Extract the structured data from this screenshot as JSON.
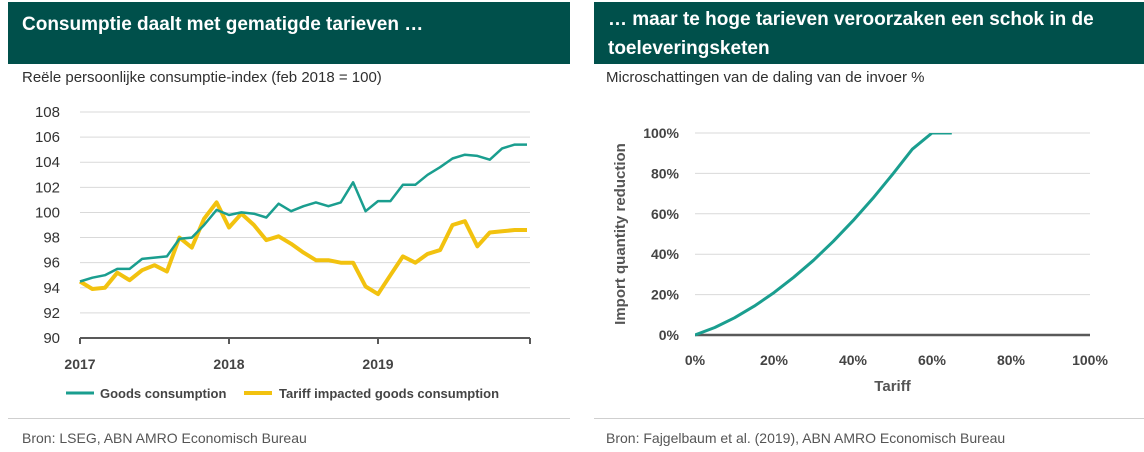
{
  "left_panel": {
    "title": "Consumptie daalt met gematigde tarieven …",
    "subtitle": "Reële persoonlijke consumptie-index (feb 2018 = 100)",
    "source": "Bron: LSEG, ABN AMRO  Economisch Bureau"
  },
  "right_panel": {
    "title": "… maar te hoge tarieven veroorzaken een schok in de toeleveringsketen",
    "subtitle": "Microschattingen van de daling van de invoer %",
    "source": "Bron: Fajgelbaum et al. (2019), ABN AMRO  Economisch Bureau"
  },
  "colors": {
    "header_bg": "#00504b",
    "teal": "#1a9e8f",
    "yellow": "#f2c20f",
    "grid": "#d9d9d9",
    "axis": "#595959"
  },
  "chart_data": [
    {
      "type": "line",
      "title": "Reële persoonlijke consumptie-index (feb 2018 = 100)",
      "xlabel": "",
      "ylabel": "",
      "xlim": [
        2017,
        2020.02
      ],
      "ylim": [
        90,
        108
      ],
      "y_ticks": [
        90,
        92,
        94,
        96,
        98,
        100,
        102,
        104,
        106,
        108
      ],
      "x_ticks": [
        2017,
        2018,
        2019
      ],
      "x_tick_labels": [
        "2017",
        "2018",
        "2019"
      ],
      "grid": true,
      "legend_position": "bottom",
      "series": [
        {
          "name": "Goods consumption",
          "color": "#1a9e8f",
          "x": [
            2017,
            2017.083,
            2017.167,
            2017.25,
            2017.333,
            2017.417,
            2017.5,
            2017.583,
            2017.667,
            2017.75,
            2017.833,
            2017.917,
            2018,
            2018.083,
            2018.167,
            2018.25,
            2018.333,
            2018.417,
            2018.5,
            2018.583,
            2018.667,
            2018.75,
            2018.833,
            2018.917,
            2019,
            2019.083,
            2019.167,
            2019.25,
            2019.333,
            2019.417,
            2019.5,
            2019.583,
            2019.667,
            2019.75,
            2019.833,
            2019.917,
            2020
          ],
          "values": [
            94.5,
            94.8,
            95.0,
            95.5,
            95.5,
            96.3,
            96.4,
            96.5,
            97.9,
            98.0,
            99.0,
            100.2,
            99.8,
            100.0,
            99.9,
            99.6,
            100.7,
            100.1,
            100.5,
            100.8,
            100.5,
            100.8,
            102.4,
            100.1,
            100.9,
            100.9,
            102.2,
            102.2,
            103.0,
            103.6,
            104.3,
            104.6,
            104.5,
            104.2,
            105.1,
            105.4,
            105.4
          ]
        },
        {
          "name": "Tariff impacted goods consumption",
          "color": "#f2c20f",
          "x": [
            2017,
            2017.083,
            2017.167,
            2017.25,
            2017.333,
            2017.417,
            2017.5,
            2017.583,
            2017.667,
            2017.75,
            2017.833,
            2017.917,
            2018,
            2018.083,
            2018.167,
            2018.25,
            2018.333,
            2018.417,
            2018.5,
            2018.583,
            2018.667,
            2018.75,
            2018.833,
            2018.917,
            2019,
            2019.083,
            2019.167,
            2019.25,
            2019.333,
            2019.417,
            2019.5,
            2019.583,
            2019.667,
            2019.75,
            2019.833,
            2019.917,
            2020
          ],
          "values": [
            94.5,
            93.9,
            94.0,
            95.2,
            94.6,
            95.4,
            95.8,
            95.3,
            98.0,
            97.2,
            99.5,
            100.8,
            98.8,
            99.9,
            99.0,
            97.8,
            98.1,
            97.5,
            96.8,
            96.2,
            96.2,
            96.0,
            96.0,
            94.1,
            93.5,
            95.0,
            96.5,
            96.0,
            96.7,
            97.0,
            99.0,
            99.3,
            97.3,
            98.4,
            98.5,
            98.6,
            98.6
          ]
        }
      ]
    },
    {
      "type": "line",
      "title": "Microschattingen van de daling van de invoer %",
      "xlabel": "Tariff",
      "ylabel": "Import quantity reduction",
      "xlim": [
        0,
        100
      ],
      "ylim": [
        0,
        100
      ],
      "x_ticks": [
        0,
        20,
        40,
        60,
        80,
        100
      ],
      "x_tick_labels": [
        "0%",
        "20%",
        "40%",
        "60%",
        "80%",
        "100%"
      ],
      "y_ticks": [
        0,
        20,
        40,
        60,
        80,
        100
      ],
      "y_tick_labels": [
        "0%",
        "20%",
        "40%",
        "60%",
        "80%",
        "100%"
      ],
      "grid": true,
      "series": [
        {
          "name": "Import quantity reduction",
          "color": "#1a9e8f",
          "x": [
            0,
            5,
            10,
            15,
            20,
            25,
            30,
            35,
            40,
            45,
            50,
            55,
            60,
            65
          ],
          "values": [
            0,
            3.7,
            8.5,
            14.3,
            21.0,
            28.6,
            37.0,
            46.4,
            56.6,
            67.6,
            79.5,
            92.0,
            100,
            100
          ]
        }
      ]
    }
  ]
}
